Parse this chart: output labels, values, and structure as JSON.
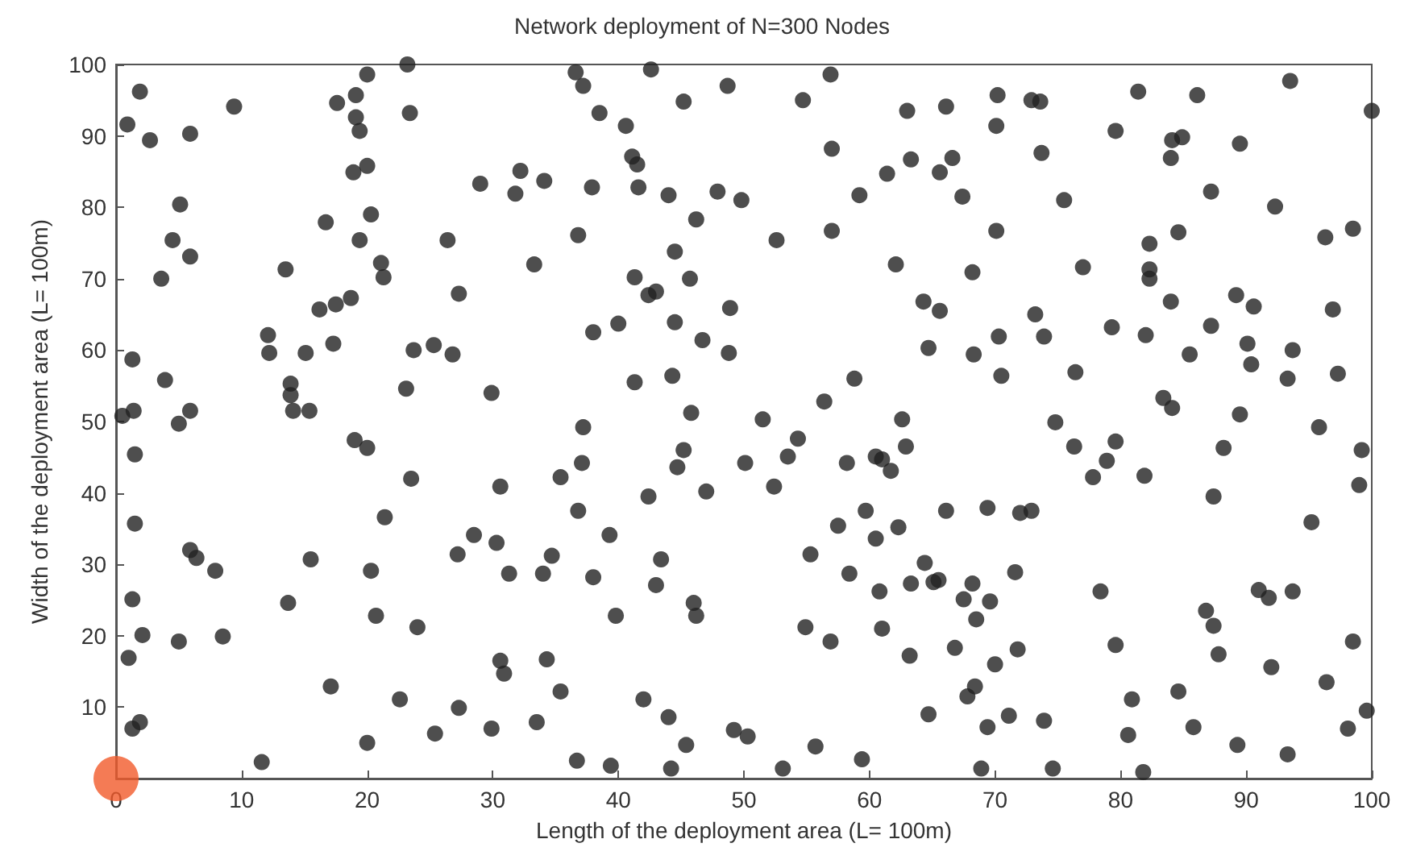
{
  "chart_data": {
    "type": "scatter",
    "title": "Network deployment of N=300 Nodes",
    "xlabel": "Length of the deployment area (L= 100m)",
    "ylabel": "Width of the deployment area (L= 100m)",
    "xlim": [
      0,
      100
    ],
    "ylim": [
      0,
      100
    ],
    "xticks": [
      0,
      10,
      20,
      30,
      40,
      50,
      60,
      70,
      80,
      90,
      100
    ],
    "yticks": [
      {
        "value": 0,
        "label": null
      },
      10,
      20,
      30,
      40,
      50,
      60,
      70,
      80,
      90,
      100
    ],
    "grid": false,
    "marker": "circle",
    "series": [
      {
        "color": "#222222",
        "x": [
          0.5,
          1.4,
          5,
          5.9,
          1.5,
          14.1,
          15.4,
          19,
          20,
          23.5,
          30.6,
          1.5,
          5.9,
          6.4,
          7.9,
          15.5,
          20.3,
          21.4,
          28.5,
          27.2,
          30.3,
          31.3,
          1.3,
          2.1,
          1,
          5,
          8.5,
          13.7,
          20.7,
          24,
          17.1,
          22.6,
          27.3,
          30.6,
          30.9,
          29.9,
          25.4,
          20,
          11.6,
          1.3,
          1.9,
          1.9,
          0.9,
          2.7,
          5.9,
          9.4,
          5.1,
          4.5,
          5.9,
          3.6,
          13.5,
          16.7,
          20.3,
          19.4,
          21.1,
          21.3,
          16.2,
          17.5,
          18.7,
          12.1,
          12.2,
          15.1,
          17.3,
          1.3,
          3.9,
          13.9,
          13.9,
          23.1,
          29.9,
          23.7,
          25.3,
          26.8,
          27.3,
          26.4,
          29,
          23.2,
          23.4,
          20,
          19.1,
          17.6,
          19.1,
          19.4,
          18.9,
          20,
          36.6,
          37.2,
          38.5,
          40.6,
          41.1,
          41.5,
          41.6,
          44,
          47.9,
          49.8,
          46.2,
          36.8,
          44.5,
          33.3,
          41.3,
          42.4,
          43,
          45.7,
          48.9,
          38,
          40,
          44.5,
          46.7,
          48.8,
          41.3,
          44.3,
          45.8,
          51.5,
          42.6,
          45.2,
          48.7,
          54.7,
          56.9,
          57,
          63,
          66.1,
          32.2,
          34.1,
          37.9,
          31.8,
          52.6,
          57,
          59.2,
          61.4,
          63.3,
          65.6,
          62.1,
          64.3,
          65.6,
          64.7,
          58.8,
          56.4,
          62.6,
          37.2,
          70.2,
          72.9,
          73.6,
          70.1,
          66.6,
          73.7,
          67.4,
          75.5,
          70.1,
          81.4,
          86.1,
          93.5,
          100,
          79.6,
          84.1,
          84.9,
          84,
          89.5,
          87.2,
          92.3,
          82.3,
          84.6,
          96.3,
          98.5,
          68.2,
          77,
          82.3,
          82.3,
          84,
          89.2,
          90.6,
          96.9,
          73.2,
          70.3,
          73.9,
          79.3,
          82,
          87.2,
          68.3,
          85.5,
          90.1,
          90.4,
          93.7,
          70.5,
          76.4,
          93.3,
          97.3,
          83.4,
          84.1,
          89.5,
          74.8,
          95.8,
          76.3,
          79.6,
          78.9,
          77.8,
          81.9,
          88.2,
          87.4,
          99.2,
          99,
          95.2,
          66.1,
          69.4,
          72,
          72.9,
          71.6,
          68.2,
          67.5,
          69.6,
          68.5,
          65.5,
          78.4,
          66.8,
          70,
          71.8,
          68.4,
          67.8,
          79.6,
          86.8,
          87.4,
          87.8,
          91,
          91.8,
          93.7,
          92,
          98.5,
          96.4,
          99.6,
          98.1,
          80.9,
          80.6,
          84.6,
          85.8,
          89.3,
          93.3,
          71.1,
          73.9,
          69.4,
          68.9,
          74.6,
          81.8,
          54.3,
          53.5,
          50.1,
          45.2,
          44.7,
          37.1,
          35.4,
          36.8,
          42.4,
          47,
          52.4,
          58.2,
          60.5,
          61,
          61.7,
          62.9,
          39.3,
          57.5,
          59.7,
          60.5,
          62.3,
          34.7,
          34,
          38,
          43.4,
          43,
          46,
          46.2,
          39.8,
          55.3,
          58.4,
          60.8,
          63.3,
          64.4,
          65.1,
          54.9,
          56.9,
          61,
          63.2,
          34.3,
          35.4,
          33.5,
          42,
          44,
          45.4,
          49.2,
          50.3,
          36.7,
          39.4,
          44.2,
          53.1,
          55.7,
          59.4,
          64.7
        ],
        "values": [
          50.8,
          51.5,
          49.7,
          51.5,
          45.4,
          51.5,
          51.5,
          47.4,
          46.3,
          42,
          40.9,
          35.7,
          32,
          30.9,
          29.1,
          30.7,
          29.1,
          36.6,
          34.1,
          31.4,
          33,
          28.7,
          25.1,
          20.1,
          16.9,
          19.2,
          19.9,
          24.6,
          22.8,
          21.2,
          12.9,
          11.1,
          9.9,
          16.5,
          14.7,
          7,
          6.3,
          5,
          2.3,
          7,
          7.9,
          96.2,
          91.6,
          89.4,
          90.3,
          94.1,
          80.4,
          75.4,
          73.1,
          70,
          71.3,
          77.9,
          79,
          75.4,
          72.2,
          70.2,
          65.7,
          66.4,
          67.3,
          62.1,
          59.6,
          59.6,
          60.9,
          58.7,
          55.8,
          55.3,
          53.7,
          54.6,
          54,
          60,
          60.7,
          59.4,
          67.9,
          75.4,
          83.3,
          100,
          93.2,
          98.6,
          95.7,
          94.6,
          92.6,
          90.7,
          84.9,
          85.8,
          98.9,
          97,
          93.2,
          91.4,
          87.1,
          86,
          82.8,
          81.7,
          82.2,
          81,
          78.3,
          76.1,
          73.8,
          72,
          70.2,
          67.7,
          68.2,
          70,
          65.9,
          62.5,
          63.7,
          63.9,
          61.4,
          59.6,
          55.5,
          56.4,
          51.2,
          50.3,
          99.3,
          94.8,
          97,
          95,
          98.6,
          88.2,
          93.5,
          94.1,
          85.1,
          83.7,
          82.8,
          81.9,
          75.4,
          76.7,
          81.7,
          84.7,
          86.7,
          84.9,
          72,
          66.8,
          65.5,
          60.3,
          56,
          52.8,
          50.3,
          49.2,
          95.7,
          95,
          94.8,
          91.4,
          86.9,
          87.6,
          81.5,
          81,
          76.7,
          96.2,
          95.7,
          97.7,
          93.5,
          90.7,
          89.4,
          89.8,
          86.9,
          88.9,
          82.2,
          80.1,
          74.9,
          76.5,
          75.8,
          77,
          70.9,
          71.6,
          71.3,
          70,
          66.8,
          67.7,
          66.1,
          65.7,
          65,
          61.9,
          61.9,
          63.2,
          62.1,
          63.4,
          59.4,
          59.4,
          60.9,
          58,
          60,
          56.4,
          56.9,
          56,
          56.7,
          53.3,
          51.9,
          51,
          49.9,
          49.2,
          46.5,
          47.2,
          44.5,
          42.2,
          42.4,
          46.3,
          39.5,
          46,
          41.1,
          35.9,
          37.5,
          37.9,
          37.2,
          37.5,
          28.9,
          27.3,
          25.1,
          24.8,
          22.3,
          27.8,
          26.2,
          18.3,
          16,
          18.1,
          12.9,
          11.5,
          18.7,
          23.5,
          21.4,
          17.4,
          26.4,
          25.3,
          26.2,
          15.6,
          19.2,
          13.5,
          9.5,
          7,
          11.1,
          6.1,
          12.2,
          7.2,
          4.7,
          3.4,
          8.8,
          8.1,
          7.2,
          1.4,
          1.4,
          0.9,
          47.6,
          45.1,
          44.2,
          46,
          43.6,
          44.2,
          42.2,
          37.5,
          39.5,
          40.2,
          40.9,
          44.2,
          45.1,
          44.7,
          43.1,
          46.5,
          34.1,
          35.4,
          37.5,
          33.6,
          35.2,
          31.2,
          28.7,
          28.2,
          30.7,
          27.1,
          24.6,
          22.8,
          22.8,
          31.4,
          28.7,
          26.2,
          27.3,
          30.2,
          27.5,
          21.2,
          19.2,
          21,
          17.2,
          16.7,
          12.2,
          7.9,
          11.1,
          8.6,
          4.7,
          6.8,
          5.9,
          2.5,
          1.8,
          1.4,
          1.4,
          4.5,
          2.7,
          9
        ]
      },
      {
        "color": "#f15a2b",
        "x": [
          0
        ],
        "values": [
          0
        ]
      }
    ]
  }
}
